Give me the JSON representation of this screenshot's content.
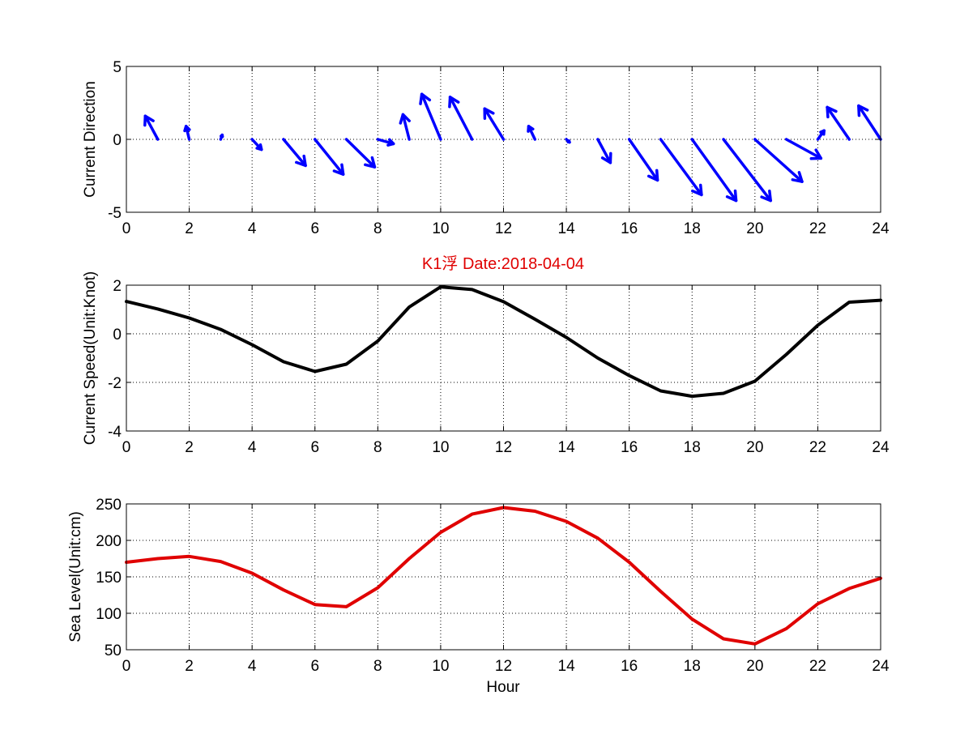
{
  "figure": {
    "title": "K1浮    Date:2018-04-04",
    "title_color": "#e00000",
    "xlabel": "Hour"
  },
  "chart_data": [
    {
      "type": "quiver",
      "ylabel": "Current Direction",
      "xlim": [
        0,
        24
      ],
      "ylim": [
        -5,
        5
      ],
      "xticks": [
        "0",
        "2",
        "4",
        "6",
        "8",
        "10",
        "12",
        "14",
        "16",
        "18",
        "20",
        "22",
        "24"
      ],
      "yticks": [
        "-5",
        "0",
        "5"
      ],
      "grid": true,
      "color": "#0000ff",
      "x": [
        1,
        2,
        3,
        4,
        5,
        6,
        7,
        8,
        9,
        10,
        11,
        12,
        13,
        14,
        15,
        16,
        17,
        18,
        19,
        20,
        21,
        22,
        23,
        24
      ],
      "u": [
        -0.4,
        -0.1,
        0.05,
        0.3,
        0.7,
        0.9,
        0.9,
        0.5,
        -0.2,
        -0.6,
        -0.7,
        -0.6,
        -0.2,
        0.1,
        0.4,
        0.9,
        1.3,
        1.4,
        1.5,
        1.5,
        1.1,
        0.2,
        -0.7,
        -0.7
      ],
      "v": [
        1.6,
        0.9,
        0.3,
        -0.7,
        -1.8,
        -2.4,
        -1.9,
        -0.3,
        1.7,
        3.1,
        2.9,
        2.1,
        0.9,
        -0.2,
        -1.6,
        -2.8,
        -3.8,
        -4.2,
        -4.2,
        -2.9,
        -1.3,
        0.6,
        2.2,
        2.3
      ]
    },
    {
      "type": "line",
      "ylabel": "Current Speed(Unit:Knot)",
      "xlim": [
        0,
        24
      ],
      "ylim": [
        -4,
        2
      ],
      "xticks": [
        "0",
        "2",
        "4",
        "6",
        "8",
        "10",
        "12",
        "14",
        "16",
        "18",
        "20",
        "22",
        "24"
      ],
      "yticks": [
        "-4",
        "-2",
        "0",
        "2"
      ],
      "grid": true,
      "color": "#000000",
      "x": [
        0,
        1,
        2,
        3,
        4,
        5,
        6,
        7,
        8,
        9,
        10,
        11,
        12,
        13,
        14,
        15,
        16,
        17,
        18,
        19,
        20,
        21,
        22,
        23,
        24
      ],
      "y": [
        1.33,
        1.02,
        0.65,
        0.18,
        -0.45,
        -1.15,
        -1.55,
        -1.25,
        -0.3,
        1.1,
        1.93,
        1.82,
        1.32,
        0.6,
        -0.15,
        -1.0,
        -1.72,
        -2.35,
        -2.57,
        -2.45,
        -1.95,
        -0.85,
        0.35,
        1.3,
        1.38
      ]
    },
    {
      "type": "line",
      "ylabel": "Sea Level(Unit:cm)",
      "xlabel": "Hour",
      "xlim": [
        0,
        24
      ],
      "ylim": [
        50,
        250
      ],
      "xticks": [
        "0",
        "2",
        "4",
        "6",
        "8",
        "10",
        "12",
        "14",
        "16",
        "18",
        "20",
        "22",
        "24"
      ],
      "yticks": [
        "50",
        "100",
        "150",
        "200",
        "250"
      ],
      "grid": true,
      "color": "#e00000",
      "x": [
        0,
        1,
        2,
        3,
        4,
        5,
        6,
        7,
        8,
        9,
        10,
        11,
        12,
        13,
        14,
        15,
        16,
        17,
        18,
        19,
        20,
        21,
        22,
        23,
        24
      ],
      "y": [
        170,
        175,
        178,
        171,
        155,
        132,
        112,
        109,
        135,
        175,
        211,
        236,
        245,
        240,
        226,
        203,
        170,
        130,
        92,
        65,
        58,
        79,
        113,
        134,
        148
      ]
    }
  ]
}
